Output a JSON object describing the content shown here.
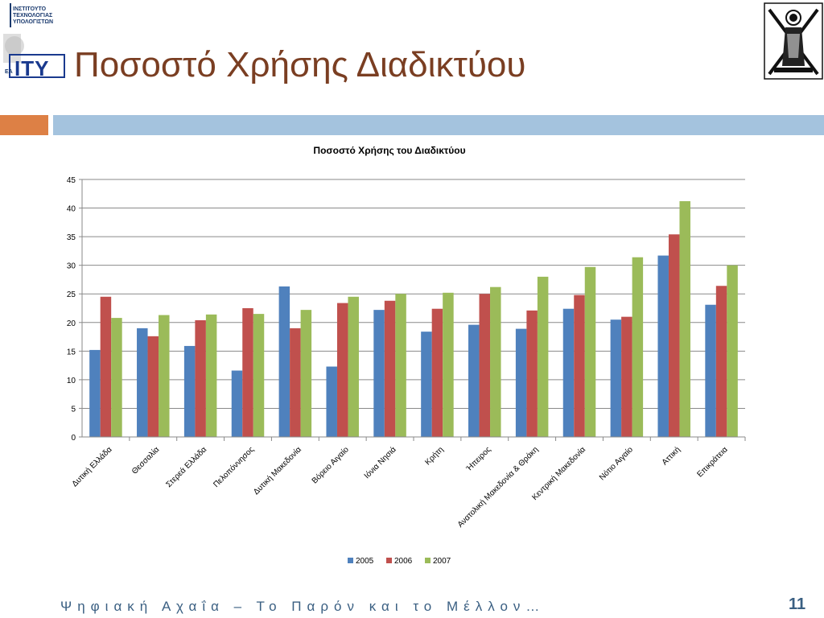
{
  "logo": {
    "text_lines": [
      "ΙΝΣΤΙΤΟΥΤΟ",
      "ΤΕΧΝΟΛΟΓΙΑΣ",
      "ΥΠΟΛΟΓΙΣΤΩΝ"
    ],
    "mark": "ITY",
    "prefix": "ΕΑ"
  },
  "slide": {
    "title": "Ποσοστό Χρήσης Διαδικτύου",
    "footer": "Ψηφιακή Αχαΐα – Το Παρόν και το Μέλλον…",
    "page_number": "11"
  },
  "chart_data": {
    "type": "bar",
    "title": "Ποσοστό Χρήσης του Διαδικτύου",
    "xlabel": "",
    "ylabel": "",
    "ylim": [
      0,
      45
    ],
    "yticks": [
      0,
      5,
      10,
      15,
      20,
      25,
      30,
      35,
      40,
      45
    ],
    "grid": true,
    "legend": "bottom",
    "categories": [
      "Δυτική Ελλάδα",
      "Θεσσαλία",
      "Στερεά Ελλάδα",
      "Πελοπόννησος",
      "Δυτική Μακεδονία",
      "Βόρειο Αιγαίο",
      "Ιόνια Νησιά",
      "Κρήτη",
      "Ήπειρος",
      "Ανατολική Μακεδονία & Θράκη",
      "Κεντρική Μακεδονία",
      "Νότιο Αιγαίο",
      "Αττική",
      "Επικράτεια"
    ],
    "series": [
      {
        "name": "2005",
        "color": "#4f81bd",
        "values": [
          15.2,
          19.0,
          15.9,
          11.6,
          26.3,
          12.3,
          22.2,
          18.4,
          19.6,
          18.9,
          22.4,
          20.5,
          31.7,
          23.1
        ]
      },
      {
        "name": "2006",
        "color": "#c0504d",
        "values": [
          24.5,
          17.6,
          20.4,
          22.5,
          19.0,
          23.4,
          23.8,
          22.4,
          25.0,
          22.1,
          24.8,
          21.0,
          35.4,
          26.4
        ]
      },
      {
        "name": "2007",
        "color": "#9bbb59",
        "values": [
          20.8,
          21.3,
          21.4,
          21.5,
          22.2,
          24.5,
          25.0,
          25.2,
          26.2,
          28.0,
          29.7,
          31.4,
          41.2,
          30.0
        ]
      }
    ]
  }
}
